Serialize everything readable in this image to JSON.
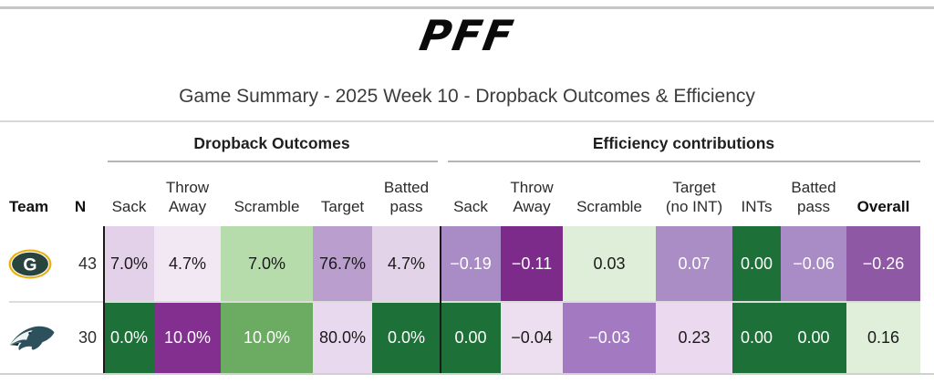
{
  "header": {
    "logo_text": "PFF",
    "title": "Game Summary - 2025 Week 10 - Dropback Outcomes & Efficiency"
  },
  "table": {
    "group_headers": [
      {
        "label": "Dropback Outcomes"
      },
      {
        "label": "Efficiency contributions"
      }
    ],
    "columns": [
      {
        "id": "team",
        "label": "Team",
        "bold": true
      },
      {
        "id": "n",
        "label": "N",
        "bold": true
      },
      {
        "id": "sack",
        "label": "Sack"
      },
      {
        "id": "throw-away",
        "label": "Throw\nAway"
      },
      {
        "id": "scramble",
        "label": "Scramble"
      },
      {
        "id": "target",
        "label": "Target"
      },
      {
        "id": "batted-pass",
        "label": "Batted\npass"
      },
      {
        "id": "eff-sack",
        "label": "Sack"
      },
      {
        "id": "eff-throw-away",
        "label": "Throw\nAway"
      },
      {
        "id": "eff-scramble",
        "label": "Scramble"
      },
      {
        "id": "eff-target-no-int",
        "label": "Target\n(no INT)"
      },
      {
        "id": "eff-ints",
        "label": "INTs"
      },
      {
        "id": "eff-batted-pass",
        "label": "Batted\npass"
      },
      {
        "id": "eff-overall",
        "label": "Overall",
        "bold": true
      }
    ],
    "rows": [
      {
        "key": "gb",
        "team_logo": "packers-logo",
        "team_name": "Green Bay Packers",
        "n": "43",
        "cells": [
          {
            "id": "sack",
            "text": "7.0%",
            "bg": "#e3d1e9",
            "fg": "#1a1a1a",
            "pattern": "dots"
          },
          {
            "id": "throw-away",
            "text": "4.7%",
            "bg": "#f2e8f4",
            "fg": "#1a1a1a",
            "pattern": "none"
          },
          {
            "id": "scramble",
            "text": "7.0%",
            "bg": "#b6dcac",
            "fg": "#1a1a1a",
            "pattern": "none"
          },
          {
            "id": "target",
            "text": "76.7%",
            "bg": "#b99ece",
            "fg": "#1a1a1a",
            "pattern": "dots"
          },
          {
            "id": "batted-pass",
            "text": "4.7%",
            "bg": "#e3d3e9",
            "fg": "#1a1a1a",
            "pattern": "none"
          },
          {
            "id": "eff-sack",
            "text": "−0.19",
            "bg": "#a98bc5",
            "fg": "#ffffff",
            "pattern": "dots"
          },
          {
            "id": "eff-throw-away",
            "text": "−0.11",
            "bg": "#7c2b8a",
            "fg": "#ffffff",
            "pattern": "none"
          },
          {
            "id": "eff-scramble",
            "text": "0.03",
            "bg": "#dfeed8",
            "fg": "#1a1a1a",
            "pattern": "none"
          },
          {
            "id": "eff-target-no-int",
            "text": "0.07",
            "bg": "#ab8dc6",
            "fg": "#ffffff",
            "pattern": "dots"
          },
          {
            "id": "eff-ints",
            "text": "0.00",
            "bg": "#1e7039",
            "fg": "#ffffff",
            "pattern": "hatch"
          },
          {
            "id": "eff-batted-pass",
            "text": "−0.06",
            "bg": "#a98bc5",
            "fg": "#ffffff",
            "pattern": "dots"
          },
          {
            "id": "eff-overall",
            "text": "−0.26",
            "bg": "#8e58a4",
            "fg": "#ffffff",
            "pattern": "none"
          }
        ]
      },
      {
        "key": "phi",
        "team_logo": "eagles-logo",
        "team_name": "Philadelphia Eagles",
        "n": "30",
        "cells": [
          {
            "id": "sack",
            "text": "0.0%",
            "bg": "#1e7039",
            "fg": "#ffffff",
            "pattern": "hatch"
          },
          {
            "id": "throw-away",
            "text": "10.0%",
            "bg": "#832f90",
            "fg": "#ffffff",
            "pattern": "none"
          },
          {
            "id": "scramble",
            "text": "10.0%",
            "bg": "#6bab62",
            "fg": "#ffffff",
            "pattern": "none"
          },
          {
            "id": "target",
            "text": "80.0%",
            "bg": "#e9d9ee",
            "fg": "#1a1a1a",
            "pattern": "none"
          },
          {
            "id": "batted-pass",
            "text": "0.0%",
            "bg": "#1e7039",
            "fg": "#ffffff",
            "pattern": "hatch"
          },
          {
            "id": "eff-sack",
            "text": "0.00",
            "bg": "#1e7039",
            "fg": "#ffffff",
            "pattern": "hatch"
          },
          {
            "id": "eff-throw-away",
            "text": "−0.04",
            "bg": "#eddff0",
            "fg": "#1a1a1a",
            "pattern": "none"
          },
          {
            "id": "eff-scramble",
            "text": "−0.03",
            "bg": "#a379c1",
            "fg": "#ffffff",
            "pattern": "none"
          },
          {
            "id": "eff-target-no-int",
            "text": "0.23",
            "bg": "#ebdaef",
            "fg": "#1a1a1a",
            "pattern": "none"
          },
          {
            "id": "eff-ints",
            "text": "0.00",
            "bg": "#1e7039",
            "fg": "#ffffff",
            "pattern": "hatch"
          },
          {
            "id": "eff-batted-pass",
            "text": "0.00",
            "bg": "#1e7039",
            "fg": "#ffffff",
            "pattern": "hatch"
          },
          {
            "id": "eff-overall",
            "text": "0.16",
            "bg": "#e0efd9",
            "fg": "#1a1a1a",
            "pattern": "none"
          }
        ]
      }
    ]
  },
  "chart_data": {
    "type": "heatmap",
    "title": "Game Summary - 2025 Week 10 - Dropback Outcomes & Efficiency",
    "column_groups": [
      "Dropback Outcomes",
      "Efficiency contributions"
    ],
    "columns": [
      "Team",
      "N",
      "Sack",
      "Throw Away",
      "Scramble",
      "Target",
      "Batted pass",
      "Sack",
      "Throw Away",
      "Scramble",
      "Target (no INT)",
      "INTs",
      "Batted pass",
      "Overall"
    ],
    "rows": [
      {
        "team": "Green Bay Packers",
        "N": 43,
        "dropback_outcomes": {
          "sack_pct": 7.0,
          "throw_away_pct": 4.7,
          "scramble_pct": 7.0,
          "target_pct": 76.7,
          "batted_pass_pct": 4.7
        },
        "efficiency_contributions": {
          "sack": -0.19,
          "throw_away": -0.11,
          "scramble": 0.03,
          "target_no_int": 0.07,
          "ints": 0.0,
          "batted_pass": -0.06,
          "overall": -0.26
        }
      },
      {
        "team": "Philadelphia Eagles",
        "N": 30,
        "dropback_outcomes": {
          "sack_pct": 0.0,
          "throw_away_pct": 10.0,
          "scramble_pct": 10.0,
          "target_pct": 80.0,
          "batted_pass_pct": 0.0
        },
        "efficiency_contributions": {
          "sack": 0.0,
          "throw_away": -0.04,
          "scramble": -0.03,
          "target_no_int": 0.23,
          "ints": 0.0,
          "batted_pass": 0.0,
          "overall": 0.16
        }
      }
    ],
    "legend_position": "none",
    "color_scale": {
      "negative": "#7c2b8a",
      "neutral": "#f2e8f4",
      "positive": "#1e7039"
    }
  }
}
